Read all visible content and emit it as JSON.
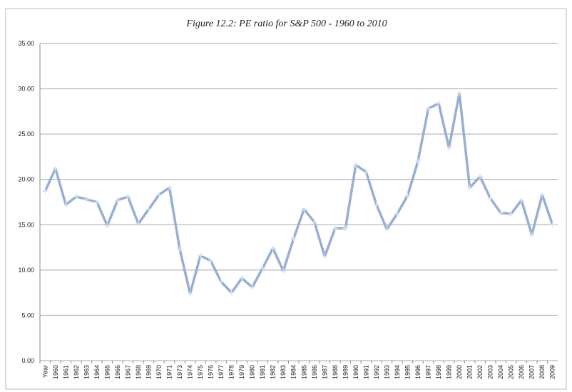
{
  "chart_data": {
    "type": "line",
    "title": "Figure 12.2:  PE ratio for S&P 500 - 1960 to 2010",
    "categories": [
      "Year",
      "1960",
      "1961",
      "1962",
      "1963",
      "1964",
      "1965",
      "1966",
      "1967",
      "1968",
      "1969",
      "1970",
      "1971",
      "1973",
      "1974",
      "1975",
      "1976",
      "1977",
      "1978",
      "1979",
      "1980",
      "1981",
      "1982",
      "1983",
      "1984",
      "1985",
      "1986",
      "1987",
      "1988",
      "1989",
      "1990",
      "1991",
      "1992",
      "1993",
      "1994",
      "1995",
      "1996",
      "1997",
      "1998",
      "1999",
      "2000",
      "2001",
      "2002",
      "2003",
      "2004",
      "2005",
      "2006",
      "2007",
      "2008",
      "2009"
    ],
    "series": [
      {
        "name": "PE ratio",
        "color": "#97afd3",
        "values": [
          18.7,
          21.2,
          17.2,
          18.1,
          17.8,
          17.5,
          14.9,
          17.7,
          18.1,
          15.1,
          16.7,
          18.3,
          19.1,
          12.3,
          7.4,
          11.6,
          11.0,
          8.7,
          7.5,
          9.1,
          8.1,
          10.2,
          12.4,
          9.9,
          13.5,
          16.7,
          15.3,
          11.5,
          14.6,
          14.6,
          21.6,
          20.8,
          17.2,
          14.5,
          16.2,
          18.2,
          22.0,
          27.8,
          28.4,
          23.5,
          29.5,
          19.1,
          20.3,
          17.9,
          16.3,
          16.2,
          17.7,
          13.9,
          18.3,
          15.0
        ]
      }
    ],
    "ylim": [
      0,
      35
    ],
    "yticks": [
      {
        "value": 0,
        "label": "0.00"
      },
      {
        "value": 5,
        "label": "5.00"
      },
      {
        "value": 10,
        "label": "10.00"
      },
      {
        "value": 15,
        "label": "15.00"
      },
      {
        "value": 20,
        "label": "20.00"
      },
      {
        "value": 25,
        "label": "25.00"
      },
      {
        "value": 30,
        "label": "30.00"
      },
      {
        "value": 35,
        "label": "35.00"
      }
    ],
    "grid": true
  }
}
